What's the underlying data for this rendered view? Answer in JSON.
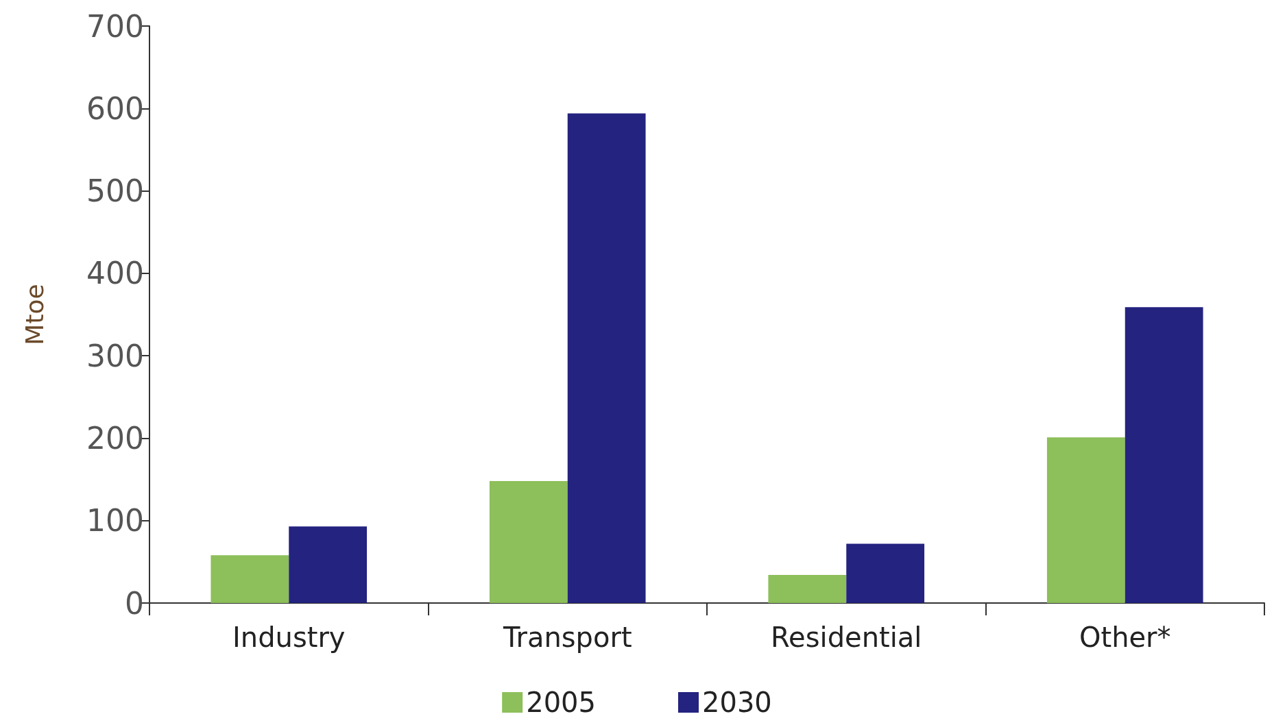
{
  "chart_data": {
    "type": "bar",
    "ylabel": "Mtoe",
    "categories": [
      "Industry",
      "Transport",
      "Residential",
      "Other*"
    ],
    "series": [
      {
        "name": "2005",
        "color": "#8dbf5a",
        "values": [
          58,
          148,
          34,
          201
        ]
      },
      {
        "name": "2030",
        "color": "#24237f",
        "values": [
          93,
          594,
          72,
          359
        ]
      }
    ],
    "ylim": [
      0,
      700
    ],
    "yticks": [
      0,
      100,
      200,
      300,
      400,
      500,
      600,
      700
    ],
    "grid": false,
    "legend": "bottom"
  }
}
